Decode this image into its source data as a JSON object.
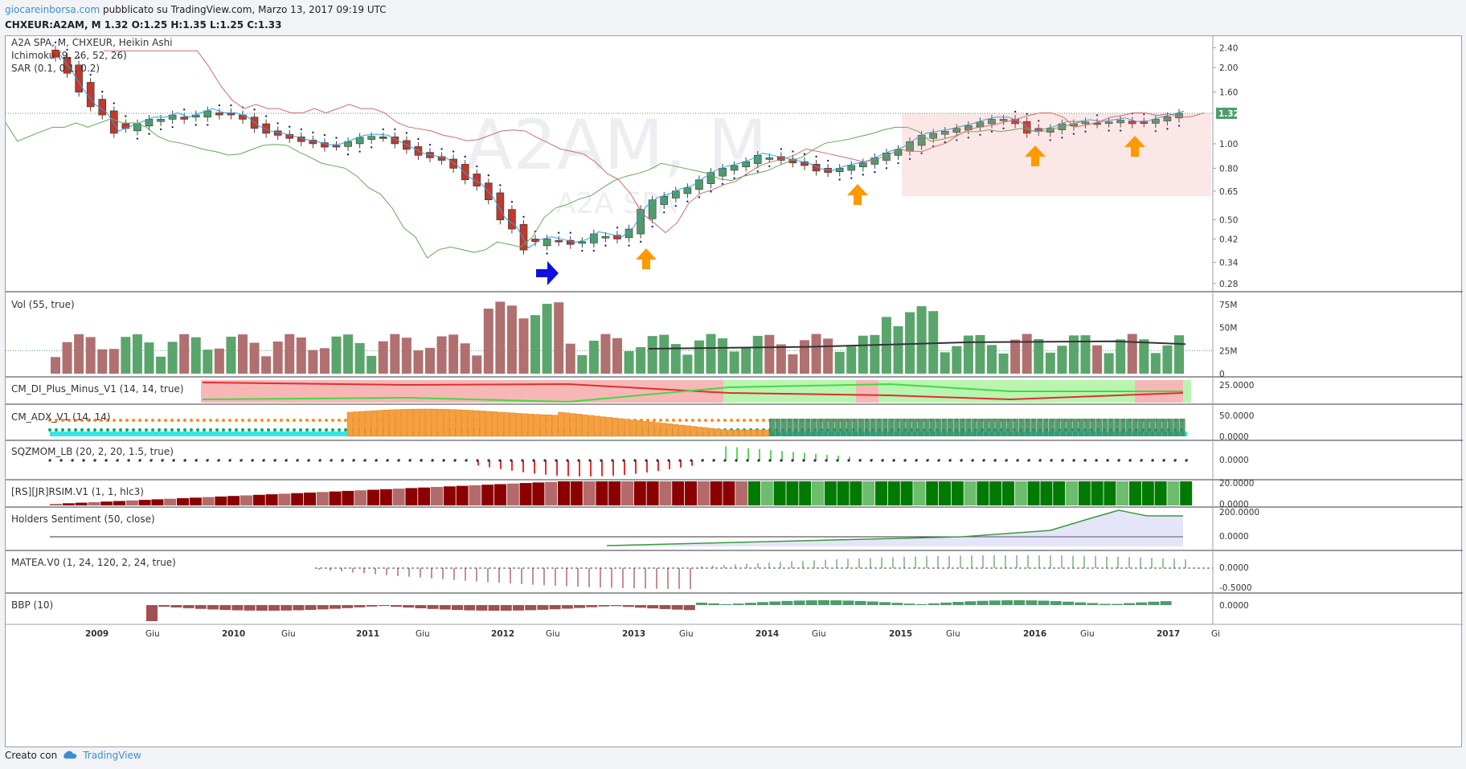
{
  "header": {
    "site": "giocareinborsa.com",
    "published": " pubblicato su TradingView.com, Marzo 13, 2017 09:19 UTC",
    "symbol_line": "CHXEUR:A2AM, M  1.32 O:1.25 H:1.35 L:1.25 C:1.33"
  },
  "footer": {
    "created_with": "Creato con",
    "brand": "TradingView"
  },
  "panes": {
    "main": {
      "title": "A2A SPA, M, CHXEUR, Heikin Ashi",
      "ind1": "Ichimoku (9, 26, 52, 26)",
      "ind2": "SAR (0.1, 0.1, 0.2)",
      "watermark1": "A2AM, M",
      "watermark2": "A2A SPA",
      "last_price": "1.32"
    },
    "vol": {
      "title": "Vol (55, true)"
    },
    "di": {
      "title": "CM_DI_Plus_Minus_V1 (14, 14, true)"
    },
    "adx": {
      "title": "CM_ADX_V1 (14, 14)"
    },
    "sqz": {
      "title": "SQZMOM_LB (20, 2, 20, 1.5, true)"
    },
    "rsim": {
      "title": "[RS][JR]RSIM.V1 (1, 1, hlc3)"
    },
    "holders": {
      "title": "Holders Sentiment (50, close)"
    },
    "matea": {
      "title": "MATEA.V0 (1, 24, 120, 2, 24, true)"
    },
    "bbp": {
      "title": "BBP (10)"
    }
  },
  "chart_data": {
    "type": "candlestick",
    "timeframe": "M",
    "price_axis_ticks": [
      "2.40",
      "2.00",
      "1.60",
      "1.32",
      "1.00",
      "0.80",
      "0.65",
      "0.50",
      "0.42",
      "0.34",
      "0.28"
    ],
    "vol_axis_ticks": [
      "75M",
      "50M",
      "25M",
      "0"
    ],
    "di_axis_ticks": [
      "25.0000"
    ],
    "adx_axis_ticks": [
      "50.0000",
      "0.0000"
    ],
    "sqz_axis_ticks": [
      "0.0000"
    ],
    "rsim_axis_ticks": [
      "20.0000",
      "0.0000"
    ],
    "holders_axis_ticks": [
      "200.0000",
      "0.0000"
    ],
    "matea_axis_ticks": [
      "0.0000",
      "-0.5000"
    ],
    "bbp_axis_ticks": [
      "0.0000"
    ],
    "time_axis": [
      "2009",
      "Giu",
      "2010",
      "Giu",
      "2011",
      "Giu",
      "2012",
      "Giu",
      "2013",
      "Giu",
      "2014",
      "Giu",
      "2015",
      "Giu",
      "2016",
      "Giu",
      "2017",
      "Gi"
    ],
    "candles_close_approx": [
      2.2,
      1.9,
      1.6,
      1.4,
      1.3,
      1.1,
      1.15,
      1.2,
      1.25,
      1.25,
      1.3,
      1.25,
      1.3,
      1.35,
      1.3,
      1.3,
      1.25,
      1.15,
      1.1,
      1.08,
      1.05,
      1.02,
      1.0,
      0.97,
      0.98,
      1.02,
      1.06,
      1.07,
      1.06,
      1.0,
      0.95,
      0.9,
      0.88,
      0.86,
      0.8,
      0.72,
      0.68,
      0.6,
      0.5,
      0.46,
      0.38,
      0.41,
      0.42,
      0.41,
      0.4,
      0.41,
      0.44,
      0.43,
      0.42,
      0.46,
      0.55,
      0.6,
      0.62,
      0.65,
      0.67,
      0.72,
      0.77,
      0.8,
      0.82,
      0.85,
      0.9,
      0.88,
      0.86,
      0.84,
      0.82,
      0.78,
      0.77,
      0.8,
      0.82,
      0.84,
      0.88,
      0.92,
      0.95,
      1.02,
      1.08,
      1.1,
      1.12,
      1.15,
      1.18,
      1.22,
      1.25,
      1.25,
      1.2,
      1.1,
      1.12,
      1.15,
      1.2,
      1.2,
      1.22,
      1.2,
      1.22,
      1.24,
      1.2,
      1.21,
      1.25,
      1.28,
      1.32
    ],
    "annotations": [
      {
        "type": "arrow",
        "color": "#1010e0",
        "direction": "right",
        "label": ""
      },
      {
        "type": "arrow",
        "color": "#ff9900",
        "direction": "up",
        "label": ""
      },
      {
        "type": "arrow",
        "color": "#ff9900",
        "direction": "up",
        "label": ""
      },
      {
        "type": "arrow",
        "color": "#ff9900",
        "direction": "up",
        "label": ""
      },
      {
        "type": "arrow",
        "color": "#ff9900",
        "direction": "up",
        "label": ""
      }
    ]
  },
  "colors": {
    "up": "#4e9c6b",
    "down": "#c0392b",
    "orange_arrow": "#ff9900",
    "blue_arrow": "#1010e0"
  }
}
